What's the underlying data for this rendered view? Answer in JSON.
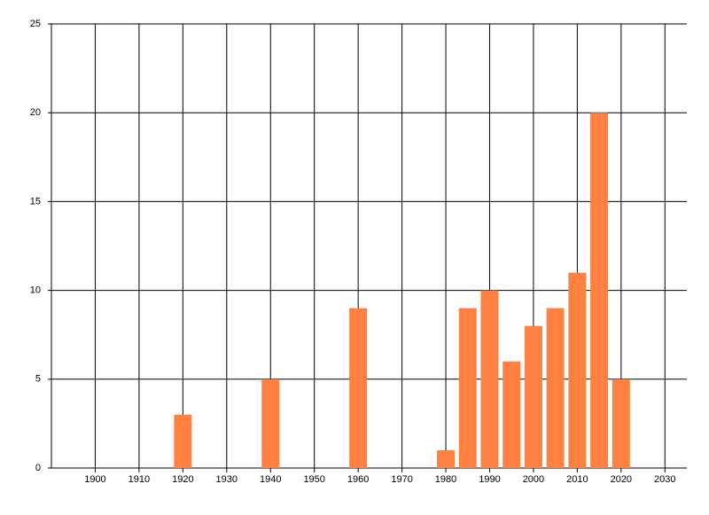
{
  "chart_data": {
    "type": "bar",
    "x": [
      1920,
      1940,
      1960,
      1980,
      1985,
      1990,
      1995,
      2000,
      2005,
      2010,
      2015,
      2020
    ],
    "values": [
      3,
      5,
      9,
      1,
      9,
      10,
      6,
      8,
      9,
      11,
      20,
      5
    ],
    "color": "#ff8040",
    "xlim": [
      1890,
      2035
    ],
    "xticks": [
      1900,
      1910,
      1920,
      1930,
      1940,
      1950,
      1960,
      1970,
      1980,
      1990,
      2000,
      2010,
      2020,
      2030
    ],
    "ylim": [
      0,
      25
    ],
    "yticks": [
      0,
      5,
      10,
      15,
      20,
      25
    ],
    "grid": true
  }
}
